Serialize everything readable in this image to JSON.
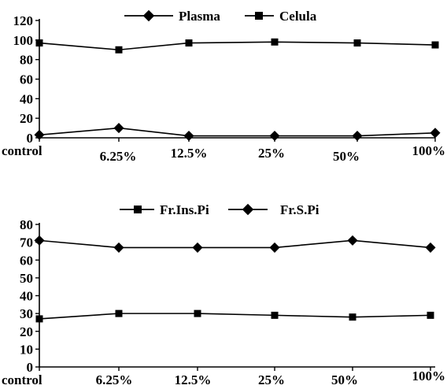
{
  "chart_data": [
    {
      "type": "line",
      "categories": [
        "control",
        "6.25%",
        "12.5%",
        "25%",
        "50%",
        "100%"
      ],
      "ylim": [
        0,
        120
      ],
      "yticks": [
        0,
        20,
        40,
        60,
        80,
        100,
        120
      ],
      "grid": false,
      "legend_position": "top-center",
      "series": [
        {
          "name": "Plasma",
          "marker": "diamond",
          "values": [
            3,
            10,
            2,
            2,
            2,
            5
          ]
        },
        {
          "name": "Celula",
          "marker": "square",
          "values": [
            97,
            90,
            97,
            98,
            97,
            95
          ]
        }
      ]
    },
    {
      "type": "line",
      "categories": [
        "control",
        "6.25%",
        "12.5%",
        "25%",
        "50%",
        "100%"
      ],
      "ylim": [
        0,
        80
      ],
      "yticks": [
        0,
        10,
        20,
        30,
        40,
        50,
        60,
        70,
        80
      ],
      "grid": false,
      "legend_position": "top-center",
      "series": [
        {
          "name": "Fr.Ins.Pi",
          "marker": "square",
          "values": [
            27,
            30,
            30,
            29,
            28,
            29
          ]
        },
        {
          "name": "Fr.S.Pi",
          "marker": "diamond",
          "values": [
            71,
            67,
            67,
            67,
            71,
            67
          ]
        }
      ]
    }
  ],
  "colors": {
    "line": "#000000",
    "marker": "#000000",
    "background": "#ffffff"
  }
}
